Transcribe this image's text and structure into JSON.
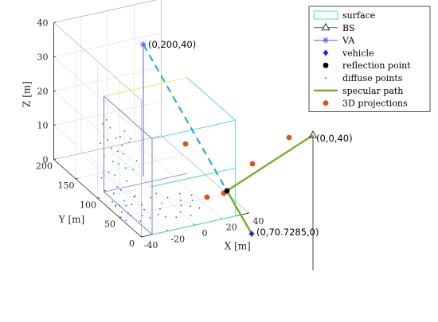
{
  "chart_data": {
    "type": "scatter",
    "axes": {
      "x": {
        "label": "X [m]",
        "lim": [
          -40,
          40
        ],
        "ticks": [
          -40,
          -20,
          0,
          20,
          40
        ],
        "tick_labels": [
          "-40",
          "-20",
          "0",
          "20",
          "40"
        ]
      },
      "y": {
        "label": "Y [m]",
        "lim": [
          0,
          200
        ],
        "ticks": [
          0,
          50,
          100,
          150,
          200
        ],
        "tick_labels": [
          "0",
          "50",
          "100",
          "150",
          "200"
        ]
      },
      "z": {
        "label": "Z [m]",
        "lim": [
          0,
          40
        ],
        "ticks": [
          0,
          10,
          20,
          30,
          40
        ],
        "tick_labels": [
          "0",
          "10",
          "20",
          "30",
          "40"
        ]
      }
    },
    "grid": true,
    "surfaces": [
      {
        "name": "surface",
        "x": -40,
        "y_range": [
          0,
          200
        ],
        "z_range": [
          0,
          40
        ],
        "color": "#5fd3d3"
      },
      {
        "name": "surface",
        "x": -40,
        "y_range": [
          0,
          200
        ],
        "z_range": [
          0,
          40
        ],
        "color": "#f0e36a"
      }
    ],
    "bs": {
      "x": 0,
      "y": 0,
      "z": 40,
      "label": "(0,0,40)",
      "color": "#444444"
    },
    "va": {
      "x": 0,
      "y": 200,
      "z": 40,
      "label": "(0,200,40)",
      "color": "#5566dd"
    },
    "vehicle": {
      "x": 0,
      "y": 70.7285,
      "z": 0,
      "label": "(0,70.7285,0)",
      "color": "#1f2fd0"
    },
    "reflection_point": {
      "x": -22,
      "y": 92,
      "z": 6
    },
    "projections": [
      {
        "x": -40,
        "y": 140,
        "z": 20
      },
      {
        "x": 0,
        "y": 0,
        "z": 20
      },
      {
        "x": 20,
        "y": 100,
        "z": 8
      },
      {
        "x": -22,
        "y": 92,
        "z": 0
      }
    ],
    "diffuse_points": [
      [
        -40,
        20,
        30
      ],
      [
        -40,
        35,
        25
      ],
      [
        -40,
        50,
        35
      ],
      [
        -40,
        60,
        18
      ],
      [
        -40,
        75,
        28
      ],
      [
        -40,
        85,
        12
      ],
      [
        -40,
        95,
        22
      ],
      [
        -40,
        105,
        32
      ],
      [
        -40,
        115,
        8
      ],
      [
        -40,
        125,
        26
      ],
      [
        -40,
        135,
        15
      ],
      [
        -40,
        145,
        36
      ],
      [
        -40,
        155,
        20
      ],
      [
        -40,
        165,
        10
      ],
      [
        -40,
        40,
        10
      ],
      [
        -40,
        70,
        38
      ],
      [
        -40,
        90,
        5
      ],
      [
        -40,
        110,
        16
      ],
      [
        -40,
        130,
        34
      ],
      [
        -40,
        150,
        6
      ],
      [
        -40,
        170,
        24
      ],
      [
        -40,
        55,
        5
      ],
      [
        -40,
        80,
        31
      ],
      [
        -40,
        100,
        12
      ],
      [
        -40,
        120,
        4
      ],
      [
        -40,
        140,
        28
      ],
      [
        -40,
        160,
        33
      ],
      [
        -40,
        30,
        14
      ],
      [
        -40,
        65,
        23
      ],
      [
        -40,
        45,
        37
      ],
      [
        -40,
        118,
        21
      ],
      [
        -40,
        88,
        34
      ],
      [
        -40,
        98,
        27
      ],
      [
        -40,
        108,
        3
      ],
      [
        -30,
        60,
        0
      ],
      [
        -25,
        80,
        0
      ],
      [
        -20,
        100,
        0
      ],
      [
        -15,
        70,
        0
      ],
      [
        -10,
        90,
        0
      ],
      [
        -5,
        110,
        0
      ],
      [
        0,
        60,
        0
      ],
      [
        5,
        85,
        0
      ],
      [
        10,
        75,
        0
      ],
      [
        15,
        95,
        0
      ],
      [
        -35,
        110,
        0
      ],
      [
        -28,
        130,
        0
      ],
      [
        -18,
        120,
        0
      ],
      [
        -8,
        140,
        0
      ],
      [
        2,
        125,
        0
      ],
      [
        -32,
        90,
        0
      ],
      [
        -12,
        55,
        0
      ],
      [
        8,
        105,
        0
      ],
      [
        -22,
        65,
        0
      ],
      [
        -38,
        75,
        0
      ],
      [
        12,
        130,
        0
      ],
      [
        -2,
        150,
        0
      ],
      [
        -26,
        150,
        0
      ],
      [
        18,
        115,
        0
      ],
      [
        -6,
        45,
        0
      ],
      [
        4,
        40,
        0
      ],
      [
        -16,
        160,
        0
      ],
      [
        -34,
        140,
        0
      ],
      [
        14,
        60,
        0
      ]
    ],
    "specular_path": [
      [
        0,
        0,
        40
      ],
      [
        -22,
        92,
        6
      ],
      [
        0,
        70.7285,
        0
      ]
    ],
    "va_path": [
      [
        0,
        200,
        40
      ],
      [
        -22,
        92,
        6
      ]
    ],
    "legend": {
      "position": "top-right",
      "entries": [
        {
          "name": "surface",
          "marker": "rect",
          "color": "#5fd3d3"
        },
        {
          "name": "BS",
          "marker": "triangle-line",
          "color": "#555555"
        },
        {
          "name": "VA",
          "marker": "star-line",
          "color": "#5566dd"
        },
        {
          "name": "vehicle",
          "marker": "diamond",
          "color": "#1f2fd0"
        },
        {
          "name": "reflection point",
          "marker": "octagon",
          "color": "#000000"
        },
        {
          "name": "diffuse points",
          "marker": "dot",
          "color": "#2266bb"
        },
        {
          "name": "specular path",
          "marker": "line",
          "color": "#77ab2f"
        },
        {
          "name": "3D projections",
          "marker": "circle",
          "color": "#d95319"
        }
      ]
    }
  }
}
